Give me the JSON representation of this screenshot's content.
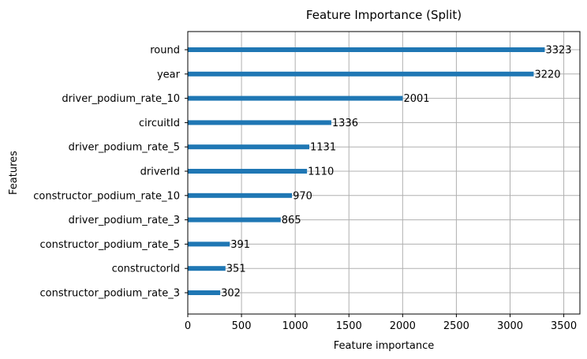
{
  "chart_data": {
    "type": "bar",
    "orientation": "horizontal",
    "title": "Feature Importance (Split)",
    "xlabel": "Feature importance",
    "ylabel": "Features",
    "xlim": [
      0,
      3650
    ],
    "xticks": [
      0,
      500,
      1000,
      1500,
      2000,
      2500,
      3000,
      3500
    ],
    "grid": true,
    "bar_color": "#1f77b4",
    "categories": [
      "round",
      "year",
      "driver_podium_rate_10",
      "circuitId",
      "driver_podium_rate_5",
      "driverId",
      "constructor_podium_rate_10",
      "driver_podium_rate_3",
      "constructor_podium_rate_5",
      "constructorId",
      "constructor_podium_rate_3"
    ],
    "values": [
      3323,
      3220,
      2001,
      1336,
      1131,
      1110,
      970,
      865,
      391,
      351,
      302
    ]
  }
}
